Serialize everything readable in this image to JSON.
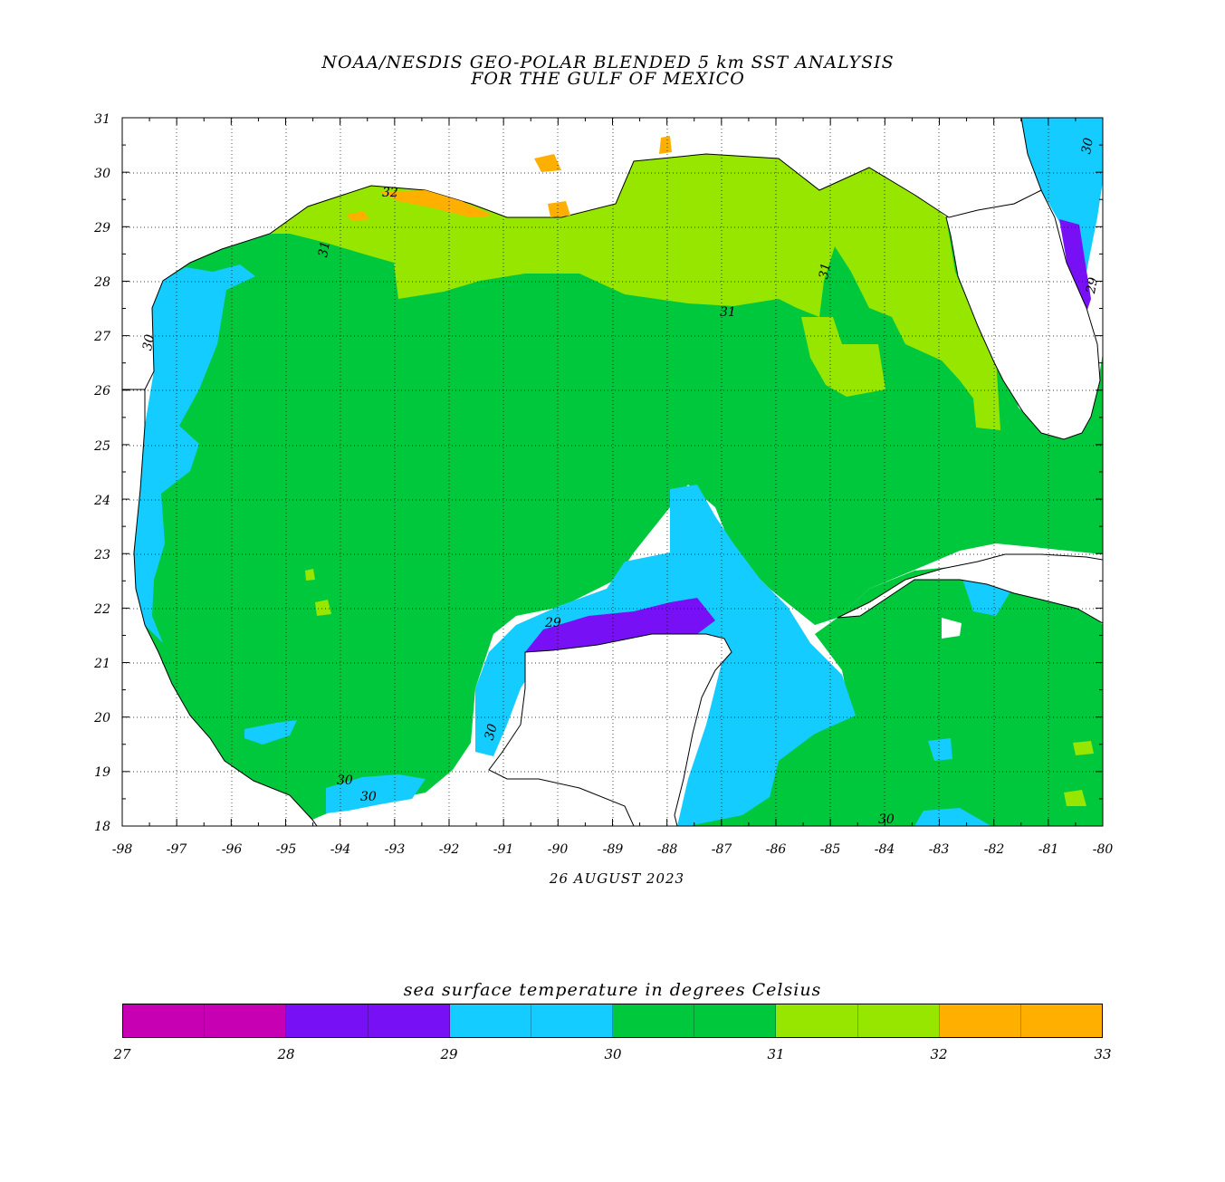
{
  "title": {
    "line1": "NOAA/NESDIS GEO-POLAR BLENDED 5 km SST ANALYSIS",
    "line2": "FOR THE GULF OF MEXICO"
  },
  "date": "26 AUGUST 2023",
  "axes": {
    "lon_ticks": [
      "-98",
      "-97",
      "-96",
      "-95",
      "-94",
      "-93",
      "-92",
      "-91",
      "-90",
      "-89",
      "-88",
      "-87",
      "-86",
      "-85",
      "-84",
      "-83",
      "-82",
      "-81",
      "-80"
    ],
    "lat_ticks": [
      "18",
      "19",
      "20",
      "21",
      "22",
      "23",
      "24",
      "25",
      "26",
      "27",
      "28",
      "29",
      "30",
      "31"
    ],
    "lon_range": [
      -98,
      -80
    ],
    "lat_range": [
      18,
      31
    ],
    "grid": "dotted"
  },
  "contour_labels": [
    {
      "text": "32"
    },
    {
      "text": "31"
    },
    {
      "text": "31"
    },
    {
      "text": "31"
    },
    {
      "text": "30"
    },
    {
      "text": "30"
    },
    {
      "text": "30"
    },
    {
      "text": "30"
    },
    {
      "text": "30"
    },
    {
      "text": "29"
    },
    {
      "text": "30"
    },
    {
      "text": "29"
    }
  ],
  "colorbar": {
    "title": "sea surface temperature in degrees Celsius",
    "labels": [
      "27",
      "28",
      "29",
      "30",
      "31",
      "32",
      "33"
    ],
    "colors": {
      "27-28": "#c800b4",
      "28-29": "#7810f5",
      "29-30": "#14ccff",
      "30-31": "#00c83c",
      "31-32": "#96e600",
      "32-33": "#ffaf00"
    }
  }
}
